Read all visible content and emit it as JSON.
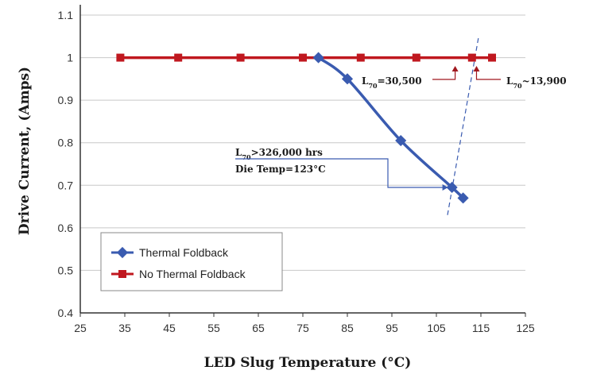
{
  "chart_data": {
    "type": "line",
    "title": "",
    "xlabel": "LED Slug Temperature (°C)",
    "ylabel": "Drive Current, (Amps)",
    "xlim": [
      25,
      125
    ],
    "ylim": [
      0.4,
      1.1
    ],
    "xticks": [
      25,
      35,
      45,
      55,
      65,
      75,
      85,
      95,
      105,
      115,
      125
    ],
    "yticks": [
      0.4,
      0.5,
      0.6,
      0.7,
      0.8,
      0.9,
      1,
      1.1
    ],
    "ytick_labels": [
      "0.4",
      "0.5",
      "0.6",
      "0.7",
      "0.8",
      "0.9",
      "1",
      "1.1"
    ],
    "grid": "horizontal",
    "series": [
      {
        "name": "Thermal Foldback",
        "color": "#3a5bb0",
        "marker": "diamond",
        "x": [
          78.5,
          85,
          97,
          108.5,
          111
        ],
        "y": [
          1.0,
          0.95,
          0.805,
          0.695,
          0.67
        ]
      },
      {
        "name": "No Thermal Foldback",
        "color": "#c0181f",
        "marker": "square",
        "x": [
          34,
          47,
          61,
          75,
          88,
          100.5,
          113,
          117.5
        ],
        "y": [
          1.0,
          1.0,
          1.0,
          1.0,
          1.0,
          1.0,
          1.0,
          1.0
        ]
      }
    ],
    "reference_line": {
      "style": "dashed",
      "color": "#3a5bb0",
      "x": [
        107.5,
        114.5
      ],
      "y": [
        0.63,
        1.05
      ]
    },
    "annotations": [
      {
        "id": "l70-foldback",
        "sub": "70",
        "line1_rest": ">326,000 hrs",
        "line2": "Die Temp=123°C",
        "target": [
          108.5,
          0.695
        ]
      },
      {
        "id": "l70-mid",
        "sub": "70",
        "rest": "=30,500",
        "target": [
          111,
          1.0
        ]
      },
      {
        "id": "l70-nofoldback",
        "sub": "70",
        "rest": "~13,900",
        "target": [
          113.3,
          1.0
        ]
      }
    ],
    "legend": {
      "position": "bottom-left",
      "entries": [
        "Thermal Foldback",
        "No Thermal Foldback"
      ]
    }
  }
}
